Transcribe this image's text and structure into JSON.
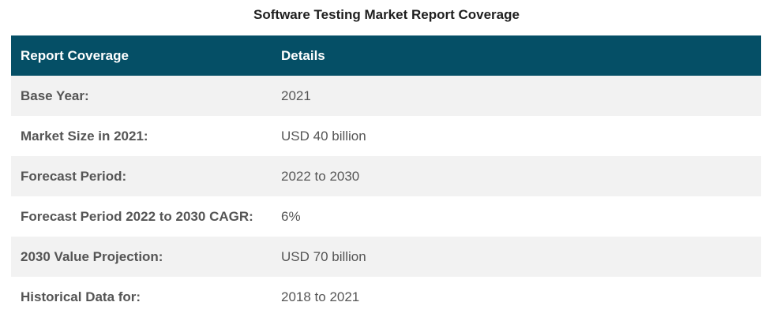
{
  "table": {
    "caption": "Software Testing Market Report Coverage",
    "headers": [
      "Report Coverage",
      "Details"
    ],
    "header_bg": "#054f66",
    "rows": [
      {
        "label": "Base Year:",
        "value": "2021"
      },
      {
        "label": "Market Size in 2021:",
        "value": "USD 40 billion"
      },
      {
        "label": "Forecast Period:",
        "value": "2022 to 2030"
      },
      {
        "label": "Forecast Period 2022 to 2030 CAGR:",
        "value": "6%"
      },
      {
        "label": "2030 Value Projection:",
        "value": "USD 70 billion"
      },
      {
        "label": "Historical Data for:",
        "value": "2018 to 2021"
      }
    ]
  }
}
